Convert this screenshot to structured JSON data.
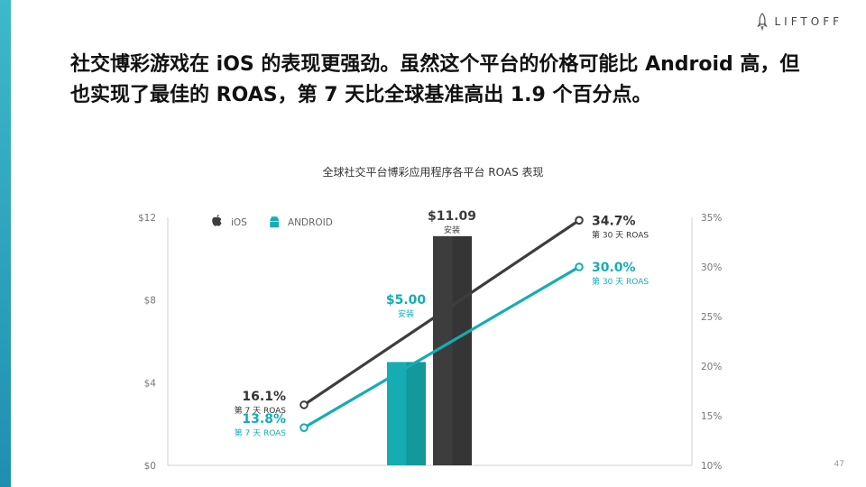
{
  "slide": {
    "logo_text": "LIFTOFF",
    "headline": "社交博彩游戏在 iOS 的表现更强劲。虽然这个平台的价格可能比 Android 高，但也实现了最佳的 ROAS，第 7 天比全球基准高出 1.9 个百分点。",
    "page_number": "47",
    "colors": {
      "ios": "#3d3d3d",
      "android": "#16adb2",
      "accent_bar": "#2aa6be"
    }
  },
  "chart_data": {
    "type": "bar+line",
    "title": "全球社交平台博彩应用程序各平台 ROAS 表现",
    "legend": [
      {
        "name": "iOS",
        "icon": "apple-icon",
        "color": "#3d3d3d"
      },
      {
        "name": "ANDROID",
        "icon": "android-icon",
        "color": "#16adb2"
      }
    ],
    "left_axis": {
      "ticks": [
        "$0",
        "$4",
        "$8",
        "$12"
      ],
      "values": [
        0,
        4,
        8,
        12
      ],
      "range": [
        0,
        12
      ]
    },
    "right_axis": {
      "ticks": [
        "10%",
        "15%",
        "20%",
        "25%",
        "30%",
        "35%"
      ],
      "values": [
        10,
        15,
        20,
        25,
        30,
        35
      ],
      "range": [
        10,
        35
      ]
    },
    "bars": [
      {
        "series": "ANDROID",
        "value": 5.0,
        "label": "$5.00",
        "sublabel": "安装",
        "color": "#16adb2"
      },
      {
        "series": "iOS",
        "value": 11.09,
        "label": "$11.09",
        "sublabel": "安装",
        "color": "#3d3d3d"
      }
    ],
    "lines": [
      {
        "series": "iOS",
        "color": "#3d3d3d",
        "points": [
          {
            "x": "第 7 天",
            "value": 16.1,
            "label": "16.1%",
            "sublabel": "第 7 天 ROAS"
          },
          {
            "x": "第 30 天",
            "value": 34.7,
            "label": "34.7%",
            "sublabel": "第 30 天 ROAS"
          }
        ]
      },
      {
        "series": "ANDROID",
        "color": "#16adb2",
        "points": [
          {
            "x": "第 7 天",
            "value": 13.8,
            "label": "13.8%",
            "sublabel": "第 7 天 ROAS"
          },
          {
            "x": "第 30 天",
            "value": 30.0,
            "label": "30.0%",
            "sublabel": "第 30 天 ROAS"
          }
        ]
      }
    ]
  }
}
